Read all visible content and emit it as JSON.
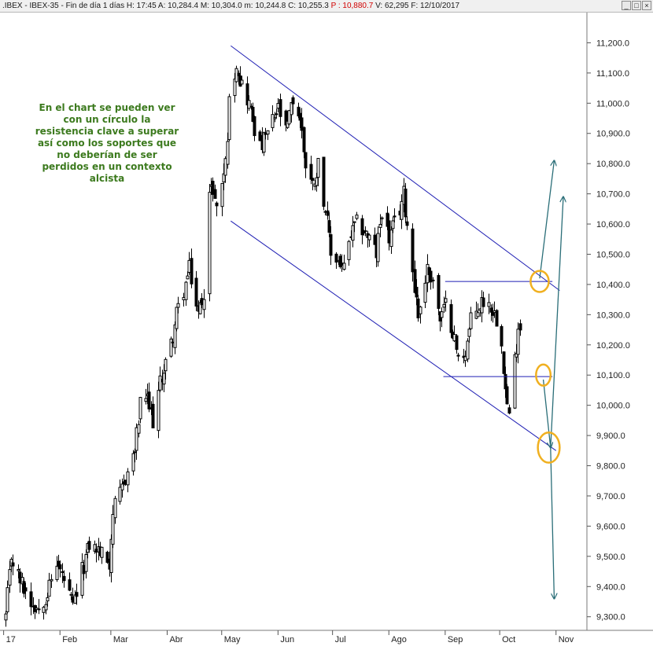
{
  "header": {
    "symbol": ".IBEX - IBEX-35 - Fin de día 1 días",
    "h_label": "H:",
    "h_value": "17:45",
    "a_label": "A:",
    "a_value": "10,284.4",
    "m_label": "M:",
    "m_value": "10,304.0",
    "min_label": "m:",
    "min_value": "10,244.8",
    "c_label": "C:",
    "c_value": "10,255.3",
    "p_label": "P :",
    "p_value": "10,880.7",
    "v_label": "V:",
    "v_value": "62,295",
    "f_label": "F:",
    "f_value": "12/10/2017",
    "window_buttons": [
      "_",
      "□",
      "×"
    ]
  },
  "annotation": {
    "lines": [
      "En el chart se pueden ver",
      "con un círculo la",
      "resistencia clave a superar",
      "así como los soportes que",
      "no deberían de ser",
      "perdidos en un contexto",
      "alcista"
    ]
  },
  "chart_data": {
    "type": "candlestick",
    "title": "",
    "y_tick_labels": [
      "11,200.0",
      "11,100.0",
      "11,000.0",
      "10,900.0",
      "10,800.0",
      "10,700.0",
      "10,600.0",
      "10,500.0",
      "10,400.0",
      "10,300.0",
      "10,200.0",
      "10,100.0",
      "10,000.0",
      "9,900.0",
      "9,800.0",
      "9,700.0",
      "9,600.0",
      "9,500.0",
      "9,400.0",
      "9,300.0"
    ],
    "y_ticks": [
      11200,
      11100,
      11000,
      10900,
      10800,
      10700,
      10600,
      10500,
      10400,
      10300,
      10200,
      10100,
      10000,
      9900,
      9800,
      9700,
      9600,
      9500,
      9400,
      9300
    ],
    "ylim": [
      9255,
      11300
    ],
    "x_tick_labels": [
      "17",
      "Feb",
      "Mar",
      "Abr",
      "May",
      "Jun",
      "Jul",
      "Ago",
      "Sep",
      "Oct",
      "Nov"
    ],
    "x_tick_dates": [
      "2017-01-01",
      "2017-02-01",
      "2017-03-01",
      "2017-04-01",
      "2017-05-01",
      "2017-06-01",
      "2017-07-01",
      "2017-08-01",
      "2017-09-01",
      "2017-10-01",
      "2017-11-01"
    ],
    "xlim": [
      "2016-12-30",
      "2017-11-18"
    ],
    "anchors": [
      [
        "2017-01-02",
        9300
      ],
      [
        "2017-01-05",
        9500
      ],
      [
        "2017-01-10",
        9420
      ],
      [
        "2017-01-16",
        9350
      ],
      [
        "2017-01-20",
        9330
      ],
      [
        "2017-01-25",
        9380
      ],
      [
        "2017-01-30",
        9480
      ],
      [
        "2017-02-03",
        9420
      ],
      [
        "2017-02-08",
        9330
      ],
      [
        "2017-02-13",
        9450
      ],
      [
        "2017-02-17",
        9540
      ],
      [
        "2017-02-22",
        9520
      ],
      [
        "2017-02-28",
        9480
      ],
      [
        "2017-03-02",
        9650
      ],
      [
        "2017-03-06",
        9700
      ],
      [
        "2017-03-10",
        9780
      ],
      [
        "2017-03-14",
        9850
      ],
      [
        "2017-03-17",
        10000
      ],
      [
        "2017-03-20",
        10030
      ],
      [
        "2017-03-24",
        9950
      ],
      [
        "2017-03-29",
        10100
      ],
      [
        "2017-04-03",
        10200
      ],
      [
        "2017-04-06",
        10300
      ],
      [
        "2017-04-11",
        10400
      ],
      [
        "2017-04-13",
        10450
      ],
      [
        "2017-04-18",
        10300
      ],
      [
        "2017-04-21",
        10380
      ],
      [
        "2017-04-24",
        10700
      ],
      [
        "2017-04-26",
        10720
      ],
      [
        "2017-04-28",
        10650
      ],
      [
        "2017-05-03",
        10800
      ],
      [
        "2017-05-05",
        11000
      ],
      [
        "2017-05-09",
        11140
      ],
      [
        "2017-05-11",
        11080
      ],
      [
        "2017-05-16",
        11000
      ],
      [
        "2017-05-19",
        10920
      ],
      [
        "2017-05-22",
        10850
      ],
      [
        "2017-05-26",
        10900
      ],
      [
        "2017-06-01",
        10980
      ],
      [
        "2017-06-05",
        10900
      ],
      [
        "2017-06-09",
        11010
      ],
      [
        "2017-06-13",
        10950
      ],
      [
        "2017-06-16",
        10800
      ],
      [
        "2017-06-20",
        10730
      ],
      [
        "2017-06-23",
        10800
      ],
      [
        "2017-06-27",
        10650
      ],
      [
        "2017-06-30",
        10500
      ],
      [
        "2017-07-04",
        10480
      ],
      [
        "2017-07-07",
        10450
      ],
      [
        "2017-07-11",
        10560
      ],
      [
        "2017-07-14",
        10600
      ],
      [
        "2017-07-18",
        10580
      ],
      [
        "2017-07-21",
        10550
      ],
      [
        "2017-07-25",
        10500
      ],
      [
        "2017-07-28",
        10650
      ],
      [
        "2017-08-01",
        10550
      ],
      [
        "2017-08-04",
        10600
      ],
      [
        "2017-08-07",
        10650
      ],
      [
        "2017-08-09",
        10700
      ],
      [
        "2017-08-11",
        10600
      ],
      [
        "2017-08-14",
        10450
      ],
      [
        "2017-08-17",
        10300
      ],
      [
        "2017-08-22",
        10450
      ],
      [
        "2017-08-25",
        10420
      ],
      [
        "2017-08-29",
        10280
      ],
      [
        "2017-09-01",
        10330
      ],
      [
        "2017-09-05",
        10250
      ],
      [
        "2017-09-08",
        10150
      ],
      [
        "2017-09-12",
        10180
      ],
      [
        "2017-09-15",
        10280
      ],
      [
        "2017-09-19",
        10320
      ],
      [
        "2017-09-22",
        10350
      ],
      [
        "2017-09-26",
        10330
      ],
      [
        "2017-09-29",
        10290
      ],
      [
        "2017-10-02",
        10220
      ],
      [
        "2017-10-04",
        10050
      ],
      [
        "2017-10-06",
        9960
      ],
      [
        "2017-10-09",
        10150
      ],
      [
        "2017-10-10",
        10200
      ],
      [
        "2017-10-11",
        10270
      ],
      [
        "2017-10-12",
        10255
      ]
    ],
    "trendlines": [
      {
        "name": "channel-upper-line",
        "color": "#1f1fb4",
        "points": [
          [
            "2017-05-06",
            11190
          ],
          [
            "2017-11-03",
            10380
          ]
        ]
      },
      {
        "name": "channel-lower-line",
        "color": "#1f1fb4",
        "points": [
          [
            "2017-05-06",
            10610
          ],
          [
            "2017-11-01",
            9850
          ]
        ]
      },
      {
        "name": "resistance-line",
        "color": "#1f1fb4",
        "points": [
          [
            "2017-09-01",
            10410
          ],
          [
            "2017-10-30",
            10410
          ]
        ]
      },
      {
        "name": "support-line",
        "color": "#1f1fb4",
        "points": [
          [
            "2017-08-31",
            10095
          ],
          [
            "2017-10-30",
            10095
          ]
        ]
      }
    ],
    "ellipses": [
      {
        "name": "resistance-circle",
        "color": "#f0b020",
        "center": [
          "2017-10-23",
          10410
        ],
        "rx_days": 5,
        "ry_value": 35
      },
      {
        "name": "support-circle",
        "color": "#f0b020",
        "center": [
          "2017-10-25",
          10100
        ],
        "rx_days": 4,
        "ry_value": 35
      },
      {
        "name": "channel-support-circle",
        "color": "#f0b020",
        "center": [
          "2017-10-28",
          9860
        ],
        "rx_days": 6,
        "ry_value": 50
      }
    ],
    "arrows": [
      {
        "name": "arrow-resistance-breakout",
        "color": "#2a6e78",
        "from": [
          "2017-10-23",
          10420
        ],
        "to": [
          "2017-10-31",
          10810
        ]
      },
      {
        "name": "arrow-to-channel",
        "color": "#2a6e78",
        "from": [
          "2017-10-25",
          10085
        ],
        "to": [
          "2017-10-29",
          9860
        ]
      },
      {
        "name": "arrow-rebound",
        "color": "#2a6e78",
        "from": [
          "2017-10-29",
          9860
        ],
        "to": [
          "2017-11-05",
          10690
        ]
      },
      {
        "name": "arrow-breakdown",
        "color": "#2a6e78",
        "from": [
          "2017-10-29",
          9860
        ],
        "to": [
          "2017-10-31",
          9360
        ]
      }
    ],
    "colors": {
      "candles": "#000000",
      "channel": "#1f1fb4",
      "circles": "#f0b020",
      "arrows": "#2a6e78",
      "header_red": "#d00000",
      "annotation": "#3c7a1e"
    },
    "grid": false,
    "axis_position": "right"
  }
}
